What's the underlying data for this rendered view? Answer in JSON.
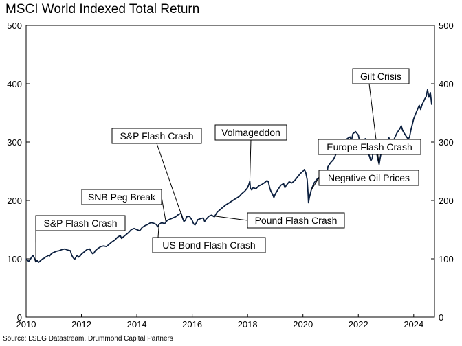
{
  "chart_data": {
    "type": "line",
    "title": "MSCI World Indexed Total Return",
    "source": "Source: LSEG Datastream, Drummond Capital Partners",
    "xlabel": "",
    "ylabel": "",
    "xlim": [
      2010,
      2024.75
    ],
    "ylim": [
      0,
      500
    ],
    "x_ticks": [
      2010,
      2012,
      2014,
      2016,
      2018,
      2020,
      2022,
      2024
    ],
    "y_ticks": [
      0,
      100,
      200,
      300,
      400,
      500
    ],
    "grid": false,
    "color": "#0b1f3f",
    "series": [
      {
        "name": "MSCI World Indexed Total Return",
        "points": [
          [
            2010.0,
            100
          ],
          [
            2010.05,
            97
          ],
          [
            2010.1,
            96
          ],
          [
            2010.15,
            99
          ],
          [
            2010.2,
            103
          ],
          [
            2010.25,
            106
          ],
          [
            2010.3,
            101
          ],
          [
            2010.35,
            95
          ],
          [
            2010.4,
            97
          ],
          [
            2010.45,
            94
          ],
          [
            2010.5,
            96
          ],
          [
            2010.55,
            98
          ],
          [
            2010.6,
            100
          ],
          [
            2010.65,
            101
          ],
          [
            2010.7,
            103
          ],
          [
            2010.75,
            104
          ],
          [
            2010.8,
            106
          ],
          [
            2010.85,
            105
          ],
          [
            2010.9,
            108
          ],
          [
            2010.95,
            110
          ],
          [
            2011.0,
            111
          ],
          [
            2011.1,
            113
          ],
          [
            2011.2,
            114
          ],
          [
            2011.3,
            116
          ],
          [
            2011.4,
            117
          ],
          [
            2011.5,
            115
          ],
          [
            2011.6,
            114
          ],
          [
            2011.65,
            106
          ],
          [
            2011.7,
            102
          ],
          [
            2011.75,
            99
          ],
          [
            2011.8,
            103
          ],
          [
            2011.85,
            106
          ],
          [
            2011.9,
            103
          ],
          [
            2011.95,
            105
          ],
          [
            2012.0,
            108
          ],
          [
            2012.1,
            112
          ],
          [
            2012.2,
            116
          ],
          [
            2012.3,
            117
          ],
          [
            2012.35,
            112
          ],
          [
            2012.4,
            109
          ],
          [
            2012.45,
            110
          ],
          [
            2012.5,
            114
          ],
          [
            2012.6,
            118
          ],
          [
            2012.7,
            121
          ],
          [
            2012.8,
            122
          ],
          [
            2012.9,
            121
          ],
          [
            2013.0,
            125
          ],
          [
            2013.1,
            129
          ],
          [
            2013.2,
            132
          ],
          [
            2013.3,
            137
          ],
          [
            2013.4,
            140
          ],
          [
            2013.45,
            135
          ],
          [
            2013.5,
            137
          ],
          [
            2013.6,
            141
          ],
          [
            2013.7,
            145
          ],
          [
            2013.8,
            150
          ],
          [
            2013.9,
            152
          ],
          [
            2014.0,
            150
          ],
          [
            2014.1,
            148
          ],
          [
            2014.2,
            154
          ],
          [
            2014.3,
            157
          ],
          [
            2014.4,
            159
          ],
          [
            2014.5,
            162
          ],
          [
            2014.6,
            161
          ],
          [
            2014.7,
            159
          ],
          [
            2014.75,
            155
          ],
          [
            2014.8,
            159
          ],
          [
            2014.9,
            162
          ],
          [
            2015.0,
            160
          ],
          [
            2015.1,
            166
          ],
          [
            2015.2,
            168
          ],
          [
            2015.3,
            170
          ],
          [
            2015.4,
            172
          ],
          [
            2015.5,
            176
          ],
          [
            2015.6,
            178
          ],
          [
            2015.65,
            170
          ],
          [
            2015.7,
            164
          ],
          [
            2015.75,
            166
          ],
          [
            2015.8,
            172
          ],
          [
            2015.9,
            173
          ],
          [
            2016.0,
            166
          ],
          [
            2016.05,
            160
          ],
          [
            2016.1,
            158
          ],
          [
            2016.15,
            162
          ],
          [
            2016.2,
            167
          ],
          [
            2016.3,
            169
          ],
          [
            2016.4,
            170
          ],
          [
            2016.45,
            164
          ],
          [
            2016.5,
            168
          ],
          [
            2016.6,
            173
          ],
          [
            2016.7,
            175
          ],
          [
            2016.8,
            172
          ],
          [
            2016.85,
            176
          ],
          [
            2016.9,
            180
          ],
          [
            2017.0,
            184
          ],
          [
            2017.1,
            188
          ],
          [
            2017.2,
            192
          ],
          [
            2017.3,
            195
          ],
          [
            2017.4,
            198
          ],
          [
            2017.5,
            201
          ],
          [
            2017.6,
            204
          ],
          [
            2017.7,
            207
          ],
          [
            2017.8,
            212
          ],
          [
            2017.9,
            216
          ],
          [
            2018.0,
            222
          ],
          [
            2018.05,
            228
          ],
          [
            2018.08,
            233
          ],
          [
            2018.1,
            221
          ],
          [
            2018.15,
            218
          ],
          [
            2018.2,
            222
          ],
          [
            2018.3,
            220
          ],
          [
            2018.4,
            225
          ],
          [
            2018.5,
            227
          ],
          [
            2018.6,
            230
          ],
          [
            2018.7,
            234
          ],
          [
            2018.75,
            232
          ],
          [
            2018.8,
            221
          ],
          [
            2018.85,
            215
          ],
          [
            2018.9,
            211
          ],
          [
            2018.95,
            205
          ],
          [
            2019.0,
            211
          ],
          [
            2019.1,
            219
          ],
          [
            2019.2,
            226
          ],
          [
            2019.3,
            229
          ],
          [
            2019.35,
            222
          ],
          [
            2019.4,
            226
          ],
          [
            2019.5,
            232
          ],
          [
            2019.6,
            230
          ],
          [
            2019.7,
            234
          ],
          [
            2019.8,
            240
          ],
          [
            2019.9,
            246
          ],
          [
            2020.0,
            250
          ],
          [
            2020.05,
            253
          ],
          [
            2020.1,
            248
          ],
          [
            2020.15,
            236
          ],
          [
            2020.18,
            215
          ],
          [
            2020.2,
            196
          ],
          [
            2020.23,
            205
          ],
          [
            2020.3,
            218
          ],
          [
            2020.4,
            230
          ],
          [
            2020.5,
            236
          ],
          [
            2020.6,
            240
          ],
          [
            2020.7,
            248
          ],
          [
            2020.75,
            243
          ],
          [
            2020.8,
            246
          ],
          [
            2020.85,
            238
          ],
          [
            2020.9,
            258
          ],
          [
            2021.0,
            265
          ],
          [
            2021.1,
            270
          ],
          [
            2021.2,
            280
          ],
          [
            2021.3,
            289
          ],
          [
            2021.4,
            294
          ],
          [
            2021.5,
            300
          ],
          [
            2021.6,
            306
          ],
          [
            2021.7,
            309
          ],
          [
            2021.75,
            302
          ],
          [
            2021.8,
            314
          ],
          [
            2021.9,
            318
          ],
          [
            2022.0,
            312
          ],
          [
            2022.05,
            300
          ],
          [
            2022.1,
            294
          ],
          [
            2022.2,
            296
          ],
          [
            2022.25,
            306
          ],
          [
            2022.3,
            296
          ],
          [
            2022.35,
            282
          ],
          [
            2022.4,
            276
          ],
          [
            2022.45,
            268
          ],
          [
            2022.5,
            272
          ],
          [
            2022.55,
            288
          ],
          [
            2022.6,
            297
          ],
          [
            2022.65,
            285
          ],
          [
            2022.7,
            272
          ],
          [
            2022.75,
            262
          ],
          [
            2022.8,
            276
          ],
          [
            2022.85,
            287
          ],
          [
            2022.9,
            296
          ],
          [
            2022.95,
            290
          ],
          [
            2023.0,
            296
          ],
          [
            2023.1,
            308
          ],
          [
            2023.15,
            302
          ],
          [
            2023.2,
            298
          ],
          [
            2023.3,
            306
          ],
          [
            2023.4,
            316
          ],
          [
            2023.5,
            323
          ],
          [
            2023.55,
            328
          ],
          [
            2023.6,
            320
          ],
          [
            2023.7,
            312
          ],
          [
            2023.8,
            305
          ],
          [
            2023.85,
            309
          ],
          [
            2023.9,
            321
          ],
          [
            2024.0,
            340
          ],
          [
            2024.1,
            352
          ],
          [
            2024.2,
            363
          ],
          [
            2024.25,
            356
          ],
          [
            2024.3,
            364
          ],
          [
            2024.4,
            374
          ],
          [
            2024.45,
            378
          ],
          [
            2024.5,
            390
          ],
          [
            2024.55,
            377
          ],
          [
            2024.6,
            385
          ],
          [
            2024.65,
            364
          ]
        ]
      }
    ],
    "annotations": [
      {
        "label": "S&P Flash Crash",
        "x": 2010.35
      },
      {
        "label": "SNB Peg Break",
        "x": 2015.05
      },
      {
        "label": "S&P Flash Crash",
        "x": 2015.65
      },
      {
        "label": "US Bond Flash Crash",
        "x": 2014.8
      },
      {
        "label": "Volmageddon",
        "x": 2018.08
      },
      {
        "label": "Pound Flash Crash",
        "x": 2016.75
      },
      {
        "label": "Gilt Crisis",
        "x": 2022.75
      },
      {
        "label": "Europe Flash Crash",
        "x": 2022.35
      },
      {
        "label": "Negative Oil Prices",
        "x": 2020.3
      }
    ]
  }
}
